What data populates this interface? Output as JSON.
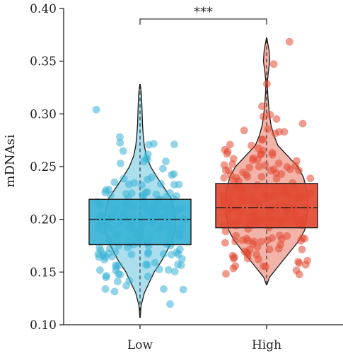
{
  "chart_data": {
    "type": "box",
    "overlays": [
      "violin",
      "jitter-points"
    ],
    "title": "",
    "xlabel": "",
    "ylabel": "mDNAsi",
    "ylim": [
      0.1,
      0.4
    ],
    "yticks": [
      "0.10",
      "0.15",
      "0.20",
      "0.25",
      "0.30",
      "0.35",
      "0.40"
    ],
    "categories": [
      "Low",
      "High"
    ],
    "grid": false,
    "legend": "none",
    "significance": {
      "label": "***",
      "between": [
        "Low",
        "High"
      ],
      "y": 0.39
    },
    "groups": [
      {
        "category": "Low",
        "color": "#3ab3d6",
        "box": {
          "q1": 0.176,
          "median": 0.2,
          "q3": 0.219
        },
        "violin": {
          "min": 0.107,
          "max": 0.328,
          "profile": [
            [
              0.107,
              0.3
            ],
            [
              0.118,
              1.5
            ],
            [
              0.13,
              6
            ],
            [
              0.14,
              13
            ],
            [
              0.15,
              20
            ],
            [
              0.16,
              30
            ],
            [
              0.175,
              42
            ],
            [
              0.19,
              50
            ],
            [
              0.2,
              50
            ],
            [
              0.21,
              48
            ],
            [
              0.22,
              44
            ],
            [
              0.23,
              34
            ],
            [
              0.24,
              24
            ],
            [
              0.25,
              15
            ],
            [
              0.26,
              9
            ],
            [
              0.27,
              6
            ],
            [
              0.28,
              4.5
            ],
            [
              0.29,
              3.5
            ],
            [
              0.3,
              3
            ],
            [
              0.31,
              2.5
            ],
            [
              0.32,
              1.8
            ],
            [
              0.328,
              0.3
            ]
          ]
        }
      },
      {
        "category": "High",
        "color": "#e24a33",
        "box": {
          "q1": 0.192,
          "median": 0.211,
          "q3": 0.234
        },
        "violin": {
          "min": 0.138,
          "max": 0.372,
          "profile": [
            [
              0.138,
              0.3
            ],
            [
              0.145,
              4
            ],
            [
              0.15,
              10
            ],
            [
              0.16,
              22
            ],
            [
              0.17,
              34
            ],
            [
              0.18,
              46
            ],
            [
              0.19,
              54
            ],
            [
              0.2,
              56
            ],
            [
              0.21,
              58
            ],
            [
              0.22,
              58
            ],
            [
              0.23,
              56
            ],
            [
              0.24,
              52
            ],
            [
              0.25,
              44
            ],
            [
              0.26,
              30
            ],
            [
              0.27,
              16
            ],
            [
              0.28,
              10
            ],
            [
              0.29,
              6
            ],
            [
              0.3,
              4
            ],
            [
              0.31,
              2.5
            ],
            [
              0.32,
              1.5
            ],
            [
              0.33,
              1
            ],
            [
              0.34,
              2.5
            ],
            [
              0.35,
              4.5
            ],
            [
              0.36,
              3.5
            ],
            [
              0.372,
              0.3
            ]
          ]
        }
      }
    ]
  }
}
